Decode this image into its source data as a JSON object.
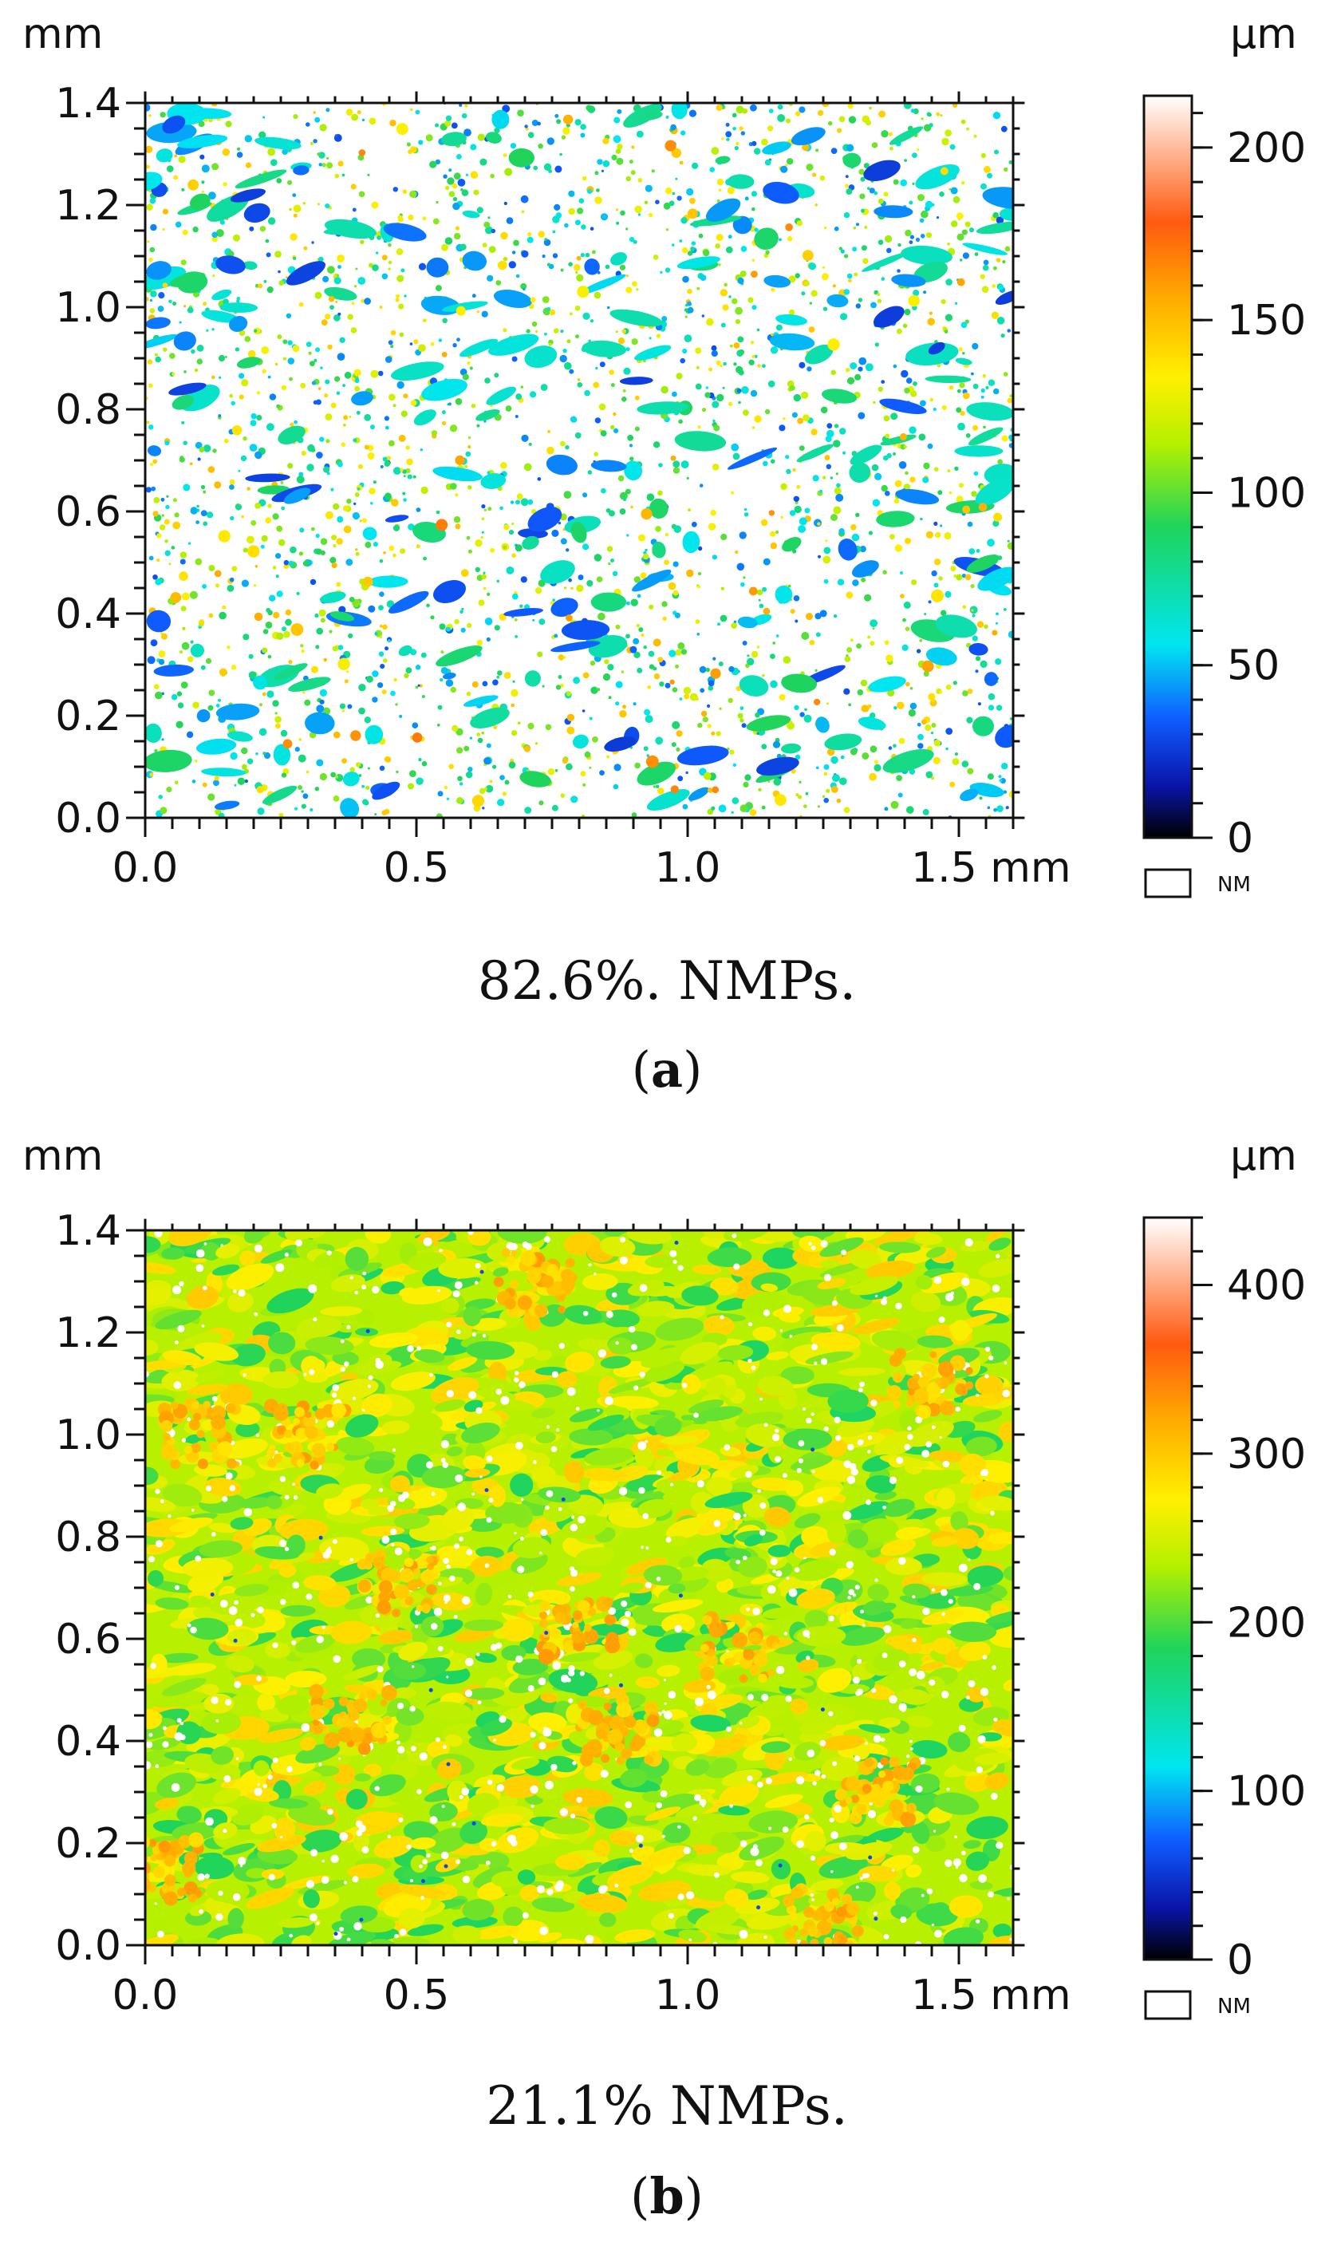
{
  "colors": {
    "colormap": [
      "#000000",
      "#0a14a8",
      "#0f5cff",
      "#00e6f0",
      "#20d45a",
      "#b4f000",
      "#fff000",
      "#ffb000",
      "#ff5a10",
      "#ffffff"
    ],
    "axis": "#111111"
  },
  "chart_data": [
    {
      "type": "heatmap",
      "panel": "a",
      "title": "",
      "ylabel": "mm",
      "x_unit": "mm",
      "xlim": [
        0.0,
        1.6
      ],
      "ylim": [
        0.0,
        1.4
      ],
      "xticks": [
        0.0,
        0.5,
        1.0,
        1.5
      ],
      "xtick_labels": [
        "0.0",
        "0.5",
        "1.0",
        "1.5 mm"
      ],
      "yticks": [
        0.0,
        0.2,
        0.4,
        0.6,
        0.8,
        1.0,
        1.2,
        1.4
      ],
      "ytick_labels": [
        "0.0",
        "0.2",
        "0.4",
        "0.6",
        "0.8",
        "1.0",
        "1.2",
        "1.4"
      ],
      "colorbar": {
        "label": "µm",
        "range": [
          0,
          215
        ],
        "ticks": [
          0,
          50,
          100,
          150,
          200
        ],
        "tick_labels": [
          "0",
          "50",
          "100",
          "150",
          "200"
        ]
      },
      "legend": {
        "nm_label": "NM",
        "nm_color": "#ffffff",
        "position": "below colorbar"
      },
      "non_measured_fraction_pct": 82.6,
      "dominant_height_range_um": [
        40,
        80
      ],
      "caption": "82.6%. NMPs.",
      "sublabel": "a"
    },
    {
      "type": "heatmap",
      "panel": "b",
      "title": "",
      "ylabel": "mm",
      "x_unit": "mm",
      "xlim": [
        0.0,
        1.6
      ],
      "ylim": [
        0.0,
        1.4
      ],
      "xticks": [
        0.0,
        0.5,
        1.0,
        1.5
      ],
      "xtick_labels": [
        "0.0",
        "0.5",
        "1.0",
        "1.5 mm"
      ],
      "yticks": [
        0.0,
        0.2,
        0.4,
        0.6,
        0.8,
        1.0,
        1.2,
        1.4
      ],
      "ytick_labels": [
        "0.0",
        "0.2",
        "0.4",
        "0.6",
        "0.8",
        "1.0",
        "1.2",
        "1.4"
      ],
      "colorbar": {
        "label": "µm",
        "range": [
          0,
          440
        ],
        "ticks": [
          0,
          100,
          200,
          300,
          400
        ],
        "tick_labels": [
          "0",
          "100",
          "200",
          "300",
          "400"
        ]
      },
      "legend": {
        "nm_label": "NM",
        "nm_color": "#ffffff",
        "position": "below colorbar"
      },
      "non_measured_fraction_pct": 21.1,
      "dominant_height_range_um": [
        180,
        300
      ],
      "caption": "21.1% NMPs.",
      "sublabel": "b"
    }
  ]
}
